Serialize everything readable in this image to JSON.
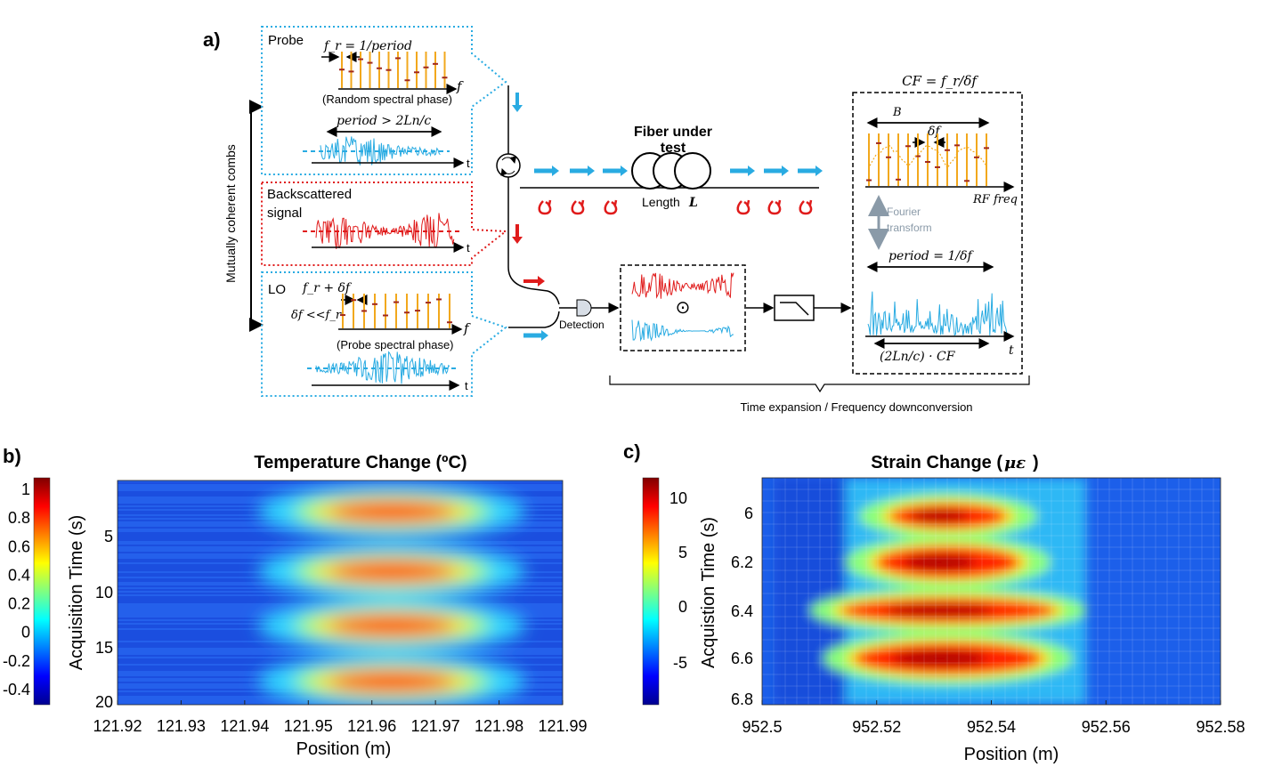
{
  "panel_a": {
    "label": "a)",
    "side_label": "Mutually coherent combs",
    "probe": {
      "title": "Probe",
      "fr_eq": "f_r = 1/period",
      "freq_axis": "f",
      "caption": "(Random spectral phase)",
      "period_eq": "period > 2Ln/c",
      "time_axis": "t"
    },
    "backscattered": {
      "title_line1": "Backscattered",
      "title_line2": "signal",
      "time_axis": "t"
    },
    "lo": {
      "title": "LO",
      "fr_eq": "f_r + δf",
      "df_eq": "δf <<f_r",
      "freq_axis": "f",
      "caption": "(Probe spectral phase)",
      "time_axis": "t"
    },
    "fiber": {
      "title_line1": "Fiber under",
      "title_line2": "test",
      "length": "Length",
      "length_sym": "L"
    },
    "detection": "Detection",
    "cf": {
      "title": "CF = f_r/δf",
      "b": "B",
      "df": "δf",
      "rf_axis": "RF freq",
      "fourier_line1": "Fourier",
      "fourier_line2": "transform",
      "period_eq": "period = 1/δf",
      "bottom_eq": "(2Ln/c) · CF",
      "time_axis": "t"
    },
    "odot": "⊙",
    "brace_label": "Time expansion / Frequency downconversion"
  },
  "panel_b": {
    "label": "b)",
    "title": "Temperature Change (ºC)",
    "ylabel": "Acquisition Time (s)",
    "xlabel": "Position (m)",
    "colorbar_ticks": [
      "1",
      "0.8",
      "0.6",
      "0.4",
      "0.2",
      "0",
      "-0.2",
      "-0.4"
    ],
    "y_ticks": [
      "5",
      "10",
      "15",
      "20"
    ],
    "x_ticks": [
      "121.92",
      "121.93",
      "121.94",
      "121.95",
      "121.96",
      "121.97",
      "121.98",
      "121.99"
    ]
  },
  "panel_c": {
    "label": "c)",
    "title": "Strain Change (",
    "title_sym": "με",
    "title_end": ")",
    "ylabel": "Acquistion Time (s)",
    "xlabel": "Position (m)",
    "colorbar_ticks": [
      "10",
      "5",
      "0",
      "-5"
    ],
    "y_ticks": [
      "6",
      "6.2",
      "6.4",
      "6.6",
      "6.8"
    ],
    "x_ticks": [
      "952.5",
      "952.52",
      "952.54",
      "952.56",
      "952.58"
    ]
  },
  "colors": {
    "blue": "#29abe2",
    "red": "#e01b1b",
    "orange": "#f2a81d",
    "gray": "#8a9aa8"
  }
}
